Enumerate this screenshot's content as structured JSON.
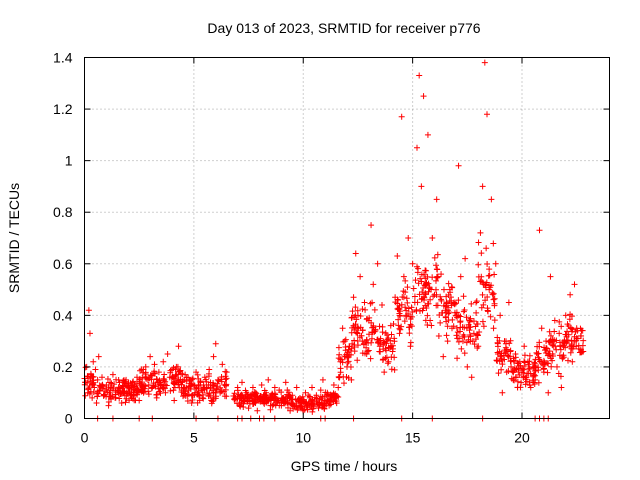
{
  "chart_data": {
    "type": "scatter",
    "title": "Day 013 of 2023, SRMTID for receiver p776",
    "xlabel": "GPS time / hours",
    "ylabel": "SRMTID / TECUs",
    "xlim": [
      0,
      24
    ],
    "ylim": [
      0,
      1.4
    ],
    "xticks": [
      0,
      5,
      10,
      15,
      20
    ],
    "yticks": [
      0,
      0.2,
      0.4,
      0.6,
      0.8,
      1,
      1.2,
      1.4
    ],
    "xtick_labels": [
      "0",
      "5",
      "10",
      "15",
      "20"
    ],
    "ytick_labels": [
      "0",
      "0.2",
      "0.4",
      "0.6",
      "0.8",
      "1",
      "1.2",
      "1.4"
    ],
    "grid": true,
    "marker": "+",
    "color": "#ff0000",
    "series": [
      {
        "name": "p776",
        "points": [
          [
            0.05,
            0.14
          ],
          [
            0.1,
            0.2
          ],
          [
            0.15,
            0.1
          ],
          [
            0.2,
            0.42
          ],
          [
            0.25,
            0.33
          ],
          [
            0.3,
            0.17
          ],
          [
            0.35,
            0.08
          ],
          [
            0.4,
            0.22
          ],
          [
            0.45,
            0.12
          ],
          [
            0.5,
            0.19
          ],
          [
            0.55,
            0.06
          ],
          [
            0.6,
            0.15
          ],
          [
            0.65,
            0.24
          ],
          [
            0.7,
            0.11
          ],
          [
            0.8,
            0.16
          ],
          [
            0.9,
            0.09
          ],
          [
            1.0,
            0.13
          ],
          [
            1.1,
            0.05
          ],
          [
            1.2,
            0.12
          ],
          [
            1.3,
            0.17
          ],
          [
            1.4,
            0.08
          ],
          [
            1.5,
            0.11
          ],
          [
            1.6,
            0.14
          ],
          [
            1.7,
            0.06
          ],
          [
            1.8,
            0.1
          ],
          [
            1.9,
            0.15
          ],
          [
            2.0,
            0.12
          ],
          [
            2.1,
            0.09
          ],
          [
            2.2,
            0.14
          ],
          [
            2.3,
            0.11
          ],
          [
            2.4,
            0.16
          ],
          [
            2.5,
            0.07
          ],
          [
            2.6,
            0.13
          ],
          [
            2.7,
            0.1
          ],
          [
            2.8,
            0.2
          ],
          [
            2.9,
            0.15
          ],
          [
            3.0,
            0.24
          ],
          [
            3.1,
            0.12
          ],
          [
            3.2,
            0.21
          ],
          [
            3.3,
            0.08
          ],
          [
            3.4,
            0.18
          ],
          [
            3.5,
            0.13
          ],
          [
            3.6,
            0.22
          ],
          [
            3.7,
            0.1
          ],
          [
            3.8,
            0.25
          ],
          [
            3.9,
            0.16
          ],
          [
            4.0,
            0.19
          ],
          [
            4.1,
            0.07
          ],
          [
            4.2,
            0.2
          ],
          [
            4.3,
            0.28
          ],
          [
            4.4,
            0.14
          ],
          [
            4.5,
            0.11
          ],
          [
            4.6,
            0.17
          ],
          [
            4.7,
            0.09
          ],
          [
            4.8,
            0.15
          ],
          [
            4.9,
            0.06
          ],
          [
            5.0,
            0.13
          ],
          [
            5.1,
            0.18
          ],
          [
            5.2,
            0.1
          ],
          [
            5.3,
            0.14
          ],
          [
            5.4,
            0.08
          ],
          [
            5.5,
            0.16
          ],
          [
            5.6,
            0.12
          ],
          [
            5.7,
            0.19
          ],
          [
            5.8,
            0.07
          ],
          [
            5.9,
            0.24
          ],
          [
            6.0,
            0.29
          ],
          [
            6.1,
            0.15
          ],
          [
            6.2,
            0.1
          ],
          [
            6.3,
            0.21
          ],
          [
            6.4,
            0.13
          ],
          [
            6.5,
            0.18
          ],
          [
            6.9,
            0.08
          ],
          [
            7.0,
            0.12
          ],
          [
            7.1,
            0.05
          ],
          [
            7.2,
            0.14
          ],
          [
            7.3,
            0.07
          ],
          [
            7.4,
            0.1
          ],
          [
            7.5,
            0.04
          ],
          [
            7.6,
            0.09
          ],
          [
            7.7,
            0.12
          ],
          [
            7.8,
            0.06
          ],
          [
            7.9,
            0.03
          ],
          [
            8.0,
            0.08
          ],
          [
            8.1,
            0.13
          ],
          [
            8.2,
            0.06
          ],
          [
            8.3,
            0.1
          ],
          [
            8.4,
            0.15
          ],
          [
            8.5,
            0.05
          ],
          [
            8.6,
            0.09
          ],
          [
            8.7,
            0.12
          ],
          [
            8.8,
            0.07
          ],
          [
            8.9,
            0.11
          ],
          [
            9.0,
            0.05
          ],
          [
            9.1,
            0.08
          ],
          [
            9.2,
            0.14
          ],
          [
            9.3,
            0.06
          ],
          [
            9.4,
            0.03
          ],
          [
            9.5,
            0.09
          ],
          [
            9.6,
            0.05
          ],
          [
            9.7,
            0.12
          ],
          [
            9.8,
            0.04
          ],
          [
            9.9,
            0.07
          ],
          [
            10.0,
            0.03
          ],
          [
            10.1,
            0.1
          ],
          [
            10.2,
            0.05
          ],
          [
            10.3,
            0.08
          ],
          [
            10.4,
            0.12
          ],
          [
            10.5,
            0.06
          ],
          [
            10.6,
            0.09
          ],
          [
            10.7,
            0.04
          ],
          [
            10.8,
            0.11
          ],
          [
            10.9,
            0.15
          ],
          [
            11.0,
            0.07
          ],
          [
            11.1,
            0.1
          ],
          [
            11.2,
            0.06
          ],
          [
            11.3,
            0.09
          ],
          [
            11.4,
            0.13
          ],
          [
            11.5,
            0.08
          ],
          [
            11.6,
            0.12
          ],
          [
            11.7,
            0.22
          ],
          [
            11.8,
            0.35
          ],
          [
            11.9,
            0.3
          ],
          [
            12.0,
            0.2
          ],
          [
            12.1,
            0.28
          ],
          [
            12.2,
            0.15
          ],
          [
            12.3,
            0.47
          ],
          [
            12.4,
            0.64
          ],
          [
            12.5,
            0.4
          ],
          [
            12.6,
            0.55
          ],
          [
            12.7,
            0.3
          ],
          [
            12.8,
            0.45
          ],
          [
            12.9,
            0.25
          ],
          [
            13.0,
            0.38
          ],
          [
            13.1,
            0.75
          ],
          [
            13.2,
            0.52
          ],
          [
            13.3,
            0.34
          ],
          [
            13.4,
            0.6
          ],
          [
            13.5,
            0.28
          ],
          [
            13.6,
            0.44
          ],
          [
            13.7,
            0.18
          ],
          [
            13.8,
            0.3
          ],
          [
            13.9,
            0.22
          ],
          [
            14.0,
            0.36
          ],
          [
            14.1,
            0.27
          ],
          [
            14.2,
            0.47
          ],
          [
            14.3,
            0.63
          ],
          [
            14.4,
            0.33
          ],
          [
            14.5,
            1.17
          ],
          [
            14.6,
            0.55
          ],
          [
            14.7,
            0.4
          ],
          [
            14.8,
            0.7
          ],
          [
            14.9,
            0.28
          ],
          [
            15.0,
            0.6
          ],
          [
            15.1,
            0.45
          ],
          [
            15.2,
            1.05
          ],
          [
            15.3,
            1.33
          ],
          [
            15.4,
            0.9
          ],
          [
            15.5,
            1.25
          ],
          [
            15.6,
            0.52
          ],
          [
            15.7,
            1.1
          ],
          [
            15.8,
            0.38
          ],
          [
            15.9,
            0.7
          ],
          [
            16.0,
            0.48
          ],
          [
            16.1,
            0.85
          ],
          [
            16.2,
            0.32
          ],
          [
            16.3,
            0.56
          ],
          [
            16.4,
            0.24
          ],
          [
            16.5,
            0.42
          ],
          [
            16.6,
            0.3
          ],
          [
            16.7,
            0.5
          ],
          [
            16.8,
            0.35
          ],
          [
            16.9,
            0.45
          ],
          [
            17.0,
            0.4
          ],
          [
            17.1,
            0.98
          ],
          [
            17.2,
            0.55
          ],
          [
            17.3,
            0.3
          ],
          [
            17.4,
            0.62
          ],
          [
            17.5,
            0.2
          ],
          [
            17.6,
            0.38
          ],
          [
            17.7,
            0.16
          ],
          [
            17.8,
            0.33
          ],
          [
            17.9,
            0.45
          ],
          [
            18.0,
            0.28
          ],
          [
            18.1,
            0.72
          ],
          [
            18.2,
            0.9
          ],
          [
            18.3,
            1.38
          ],
          [
            18.4,
            1.18
          ],
          [
            18.5,
            0.5
          ],
          [
            18.6,
            0.85
          ],
          [
            18.7,
            0.35
          ],
          [
            18.8,
            0.6
          ],
          [
            18.9,
            0.25
          ],
          [
            19.0,
            0.4
          ],
          [
            19.1,
            0.1
          ],
          [
            19.2,
            0.3
          ],
          [
            19.3,
            0.18
          ],
          [
            19.4,
            0.45
          ],
          [
            19.5,
            0.2
          ],
          [
            19.6,
            0.15
          ],
          [
            19.7,
            0.25
          ],
          [
            19.8,
            0.12
          ],
          [
            19.9,
            0.22
          ],
          [
            20.0,
            0.18
          ],
          [
            20.1,
            0.28
          ],
          [
            20.2,
            0.16
          ],
          [
            20.3,
            0.21
          ],
          [
            20.4,
            0.12
          ],
          [
            20.5,
            0.2
          ],
          [
            20.6,
            0.15
          ],
          [
            20.7,
            0.25
          ],
          [
            20.8,
            0.73
          ],
          [
            20.9,
            0.35
          ],
          [
            21.0,
            0.18
          ],
          [
            21.1,
            0.3
          ],
          [
            21.2,
            0.1
          ],
          [
            21.3,
            0.55
          ],
          [
            21.4,
            0.25
          ],
          [
            21.5,
            0.38
          ],
          [
            21.6,
            0.2
          ],
          [
            21.7,
            0.33
          ],
          [
            21.8,
            0.12
          ],
          [
            21.9,
            0.28
          ],
          [
            22.0,
            0.4
          ],
          [
            22.1,
            0.3
          ],
          [
            22.2,
            0.48
          ],
          [
            22.3,
            0.22
          ],
          [
            22.4,
            0.52
          ],
          [
            22.5,
            0.35
          ],
          [
            22.6,
            0.27
          ],
          [
            22.7,
            0.32
          ],
          [
            22.8,
            0.26
          ]
        ],
        "bands": [
          [
            0.0,
            0.5,
            0.06,
            0.22
          ],
          [
            0.5,
            2.5,
            0.05,
            0.17
          ],
          [
            2.5,
            4.5,
            0.07,
            0.22
          ],
          [
            4.5,
            6.5,
            0.04,
            0.2
          ],
          [
            6.8,
            8.0,
            0.03,
            0.13
          ],
          [
            8.0,
            9.5,
            0.03,
            0.12
          ],
          [
            9.5,
            11.0,
            0.02,
            0.1
          ],
          [
            11.0,
            11.6,
            0.04,
            0.12
          ],
          [
            11.6,
            12.2,
            0.1,
            0.38
          ],
          [
            12.2,
            13.5,
            0.18,
            0.5
          ],
          [
            13.5,
            14.2,
            0.16,
            0.4
          ],
          [
            14.2,
            15.0,
            0.25,
            0.6
          ],
          [
            15.0,
            16.2,
            0.3,
            0.7
          ],
          [
            16.2,
            17.0,
            0.28,
            0.55
          ],
          [
            17.0,
            18.0,
            0.2,
            0.5
          ],
          [
            18.0,
            18.8,
            0.3,
            0.7
          ],
          [
            18.8,
            19.5,
            0.12,
            0.38
          ],
          [
            19.5,
            20.6,
            0.08,
            0.28
          ],
          [
            20.6,
            21.2,
            0.12,
            0.35
          ],
          [
            21.2,
            22.0,
            0.15,
            0.4
          ],
          [
            22.0,
            22.8,
            0.18,
            0.45
          ]
        ],
        "baseline_points": [
          0.6,
          1.3,
          2.5,
          3.1,
          5.1,
          6.1,
          7.0,
          7.2,
          7.6,
          8.0,
          8.2,
          8.7,
          10.8,
          11.0,
          12.3,
          14.5,
          15.9,
          18.2,
          20.6,
          20.8,
          21.0,
          21.2
        ]
      }
    ]
  }
}
